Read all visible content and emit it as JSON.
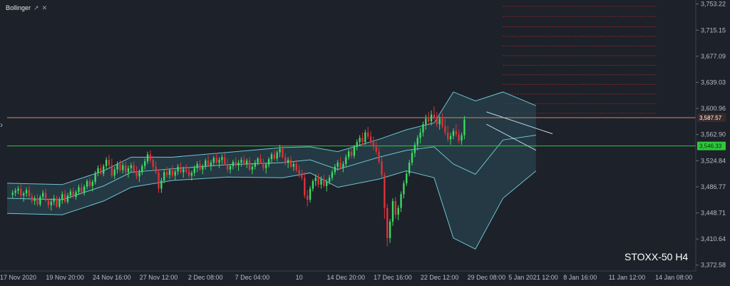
{
  "toolbar": {
    "indicator_name": "Bollinger",
    "settings_icon": "link-icon",
    "close_icon": "close-icon",
    "collapse_icon": "chevron-right-icon"
  },
  "instrument_label": "STOXX-50 H4",
  "colors": {
    "background": "#1d212a",
    "bull": "#3ddc63",
    "bear": "#e0323a",
    "band_line": "#6fc3cf",
    "band_fill": "#2a4f57",
    "resistance": "#d7826a",
    "support": "#2ec93a",
    "grid_red": "#b3262a"
  },
  "chart_data": {
    "type": "candlestick",
    "ylim": [
      3364,
      3757
    ],
    "y_ticks": [
      3753.22,
      3715.15,
      3677.09,
      3639.03,
      3600.96,
      3562.9,
      3524.84,
      3486.77,
      3448.71,
      3410.64,
      3372.58
    ],
    "y_tick_labels": [
      "3,753.22",
      "3,715.15",
      "3,677.09",
      "3,639.03",
      "3,600.96",
      "3,562.90",
      "3,524.84",
      "3,486.77",
      "3,448.71",
      "3,410.64",
      "3,372.58"
    ],
    "x_tick_labels": [
      "17 Nov 2020",
      "19 Nov 20:00",
      "24 Nov 16:00",
      "27 Nov 12:00",
      "2 Dec 08:00",
      "7 Dec 04:00",
      "10",
      "14 Dec 20:00",
      "17 Dec 16:00",
      "22 Dec 12:00",
      "29 Dec 08:00",
      "5 Jan 2021 12:00",
      "8 Jan 16:00",
      "11 Jan 12:00",
      "14 Jan 08:00"
    ],
    "x_tick_index": [
      4,
      21,
      38,
      55,
      72,
      89,
      106,
      123,
      140,
      157,
      174,
      191,
      208,
      225,
      242
    ],
    "index_max": 250,
    "candles": [
      [
        3475,
        3482,
        3470,
        3478
      ],
      [
        3478,
        3485,
        3473,
        3481
      ],
      [
        3481,
        3488,
        3476,
        3484
      ],
      [
        3484,
        3490,
        3470,
        3474
      ],
      [
        3474,
        3480,
        3465,
        3477
      ],
      [
        3477,
        3486,
        3472,
        3482
      ],
      [
        3482,
        3488,
        3470,
        3473
      ],
      [
        3473,
        3478,
        3462,
        3466
      ],
      [
        3466,
        3474,
        3460,
        3470
      ],
      [
        3470,
        3476,
        3458,
        3461
      ],
      [
        3461,
        3475,
        3458,
        3472
      ],
      [
        3472,
        3482,
        3468,
        3478
      ],
      [
        3478,
        3484,
        3465,
        3467
      ],
      [
        3467,
        3470,
        3455,
        3460
      ],
      [
        3460,
        3470,
        3452,
        3465
      ],
      [
        3465,
        3475,
        3460,
        3470
      ],
      [
        3470,
        3474,
        3456,
        3458
      ],
      [
        3458,
        3472,
        3455,
        3468
      ],
      [
        3468,
        3480,
        3462,
        3476
      ],
      [
        3476,
        3482,
        3463,
        3465
      ],
      [
        3465,
        3478,
        3462,
        3474
      ],
      [
        3474,
        3484,
        3470,
        3480
      ],
      [
        3480,
        3486,
        3470,
        3472
      ],
      [
        3472,
        3482,
        3468,
        3479
      ],
      [
        3479,
        3490,
        3475,
        3486
      ],
      [
        3486,
        3492,
        3476,
        3478
      ],
      [
        3478,
        3490,
        3474,
        3487
      ],
      [
        3487,
        3498,
        3483,
        3495
      ],
      [
        3495,
        3500,
        3485,
        3488
      ],
      [
        3488,
        3497,
        3480,
        3494
      ],
      [
        3494,
        3510,
        3490,
        3507
      ],
      [
        3507,
        3518,
        3502,
        3514
      ],
      [
        3514,
        3520,
        3504,
        3506
      ],
      [
        3506,
        3520,
        3502,
        3517
      ],
      [
        3517,
        3530,
        3512,
        3526
      ],
      [
        3526,
        3533,
        3515,
        3518
      ],
      [
        3518,
        3528,
        3500,
        3503
      ],
      [
        3503,
        3516,
        3498,
        3512
      ],
      [
        3512,
        3524,
        3506,
        3520
      ],
      [
        3520,
        3526,
        3508,
        3511
      ],
      [
        3511,
        3522,
        3506,
        3518
      ],
      [
        3518,
        3524,
        3505,
        3508
      ],
      [
        3508,
        3518,
        3500,
        3514
      ],
      [
        3514,
        3522,
        3508,
        3518
      ],
      [
        3518,
        3524,
        3506,
        3509
      ],
      [
        3509,
        3517,
        3498,
        3502
      ],
      [
        3502,
        3512,
        3494,
        3508
      ],
      [
        3508,
        3520,
        3504,
        3517
      ],
      [
        3517,
        3528,
        3512,
        3524
      ],
      [
        3524,
        3538,
        3520,
        3534
      ],
      [
        3534,
        3540,
        3522,
        3526
      ],
      [
        3526,
        3532,
        3512,
        3516
      ],
      [
        3516,
        3524,
        3505,
        3508
      ],
      [
        3508,
        3512,
        3478,
        3484
      ],
      [
        3484,
        3500,
        3478,
        3496
      ],
      [
        3496,
        3512,
        3492,
        3508
      ],
      [
        3508,
        3516,
        3500,
        3504
      ],
      [
        3504,
        3514,
        3498,
        3511
      ],
      [
        3511,
        3518,
        3500,
        3503
      ],
      [
        3503,
        3512,
        3496,
        3509
      ],
      [
        3509,
        3520,
        3504,
        3516
      ],
      [
        3516,
        3522,
        3506,
        3508
      ],
      [
        3508,
        3516,
        3500,
        3512
      ],
      [
        3512,
        3520,
        3506,
        3509
      ],
      [
        3509,
        3515,
        3500,
        3503
      ],
      [
        3503,
        3510,
        3496,
        3507
      ],
      [
        3507,
        3518,
        3502,
        3514
      ],
      [
        3514,
        3524,
        3508,
        3520
      ],
      [
        3520,
        3526,
        3510,
        3512
      ],
      [
        3512,
        3520,
        3505,
        3516
      ],
      [
        3516,
        3528,
        3512,
        3525
      ],
      [
        3525,
        3532,
        3516,
        3518
      ],
      [
        3518,
        3526,
        3510,
        3522
      ],
      [
        3522,
        3532,
        3518,
        3529
      ],
      [
        3529,
        3536,
        3520,
        3522
      ],
      [
        3522,
        3530,
        3514,
        3526
      ],
      [
        3526,
        3534,
        3520,
        3530
      ],
      [
        3530,
        3536,
        3518,
        3520
      ],
      [
        3520,
        3528,
        3508,
        3512
      ],
      [
        3512,
        3520,
        3506,
        3517
      ],
      [
        3517,
        3526,
        3512,
        3523
      ],
      [
        3523,
        3530,
        3515,
        3518
      ],
      [
        3518,
        3526,
        3510,
        3522
      ],
      [
        3522,
        3530,
        3516,
        3526
      ],
      [
        3526,
        3532,
        3518,
        3520
      ],
      [
        3520,
        3528,
        3514,
        3525
      ],
      [
        3525,
        3530,
        3510,
        3512
      ],
      [
        3512,
        3520,
        3505,
        3516
      ],
      [
        3516,
        3526,
        3512,
        3522
      ],
      [
        3522,
        3530,
        3518,
        3528
      ],
      [
        3528,
        3534,
        3520,
        3522
      ],
      [
        3522,
        3528,
        3510,
        3514
      ],
      [
        3514,
        3522,
        3506,
        3519
      ],
      [
        3519,
        3530,
        3515,
        3527
      ],
      [
        3527,
        3537,
        3522,
        3534
      ],
      [
        3534,
        3540,
        3525,
        3528
      ],
      [
        3528,
        3540,
        3524,
        3537
      ],
      [
        3537,
        3548,
        3530,
        3542
      ],
      [
        3542,
        3546,
        3528,
        3530
      ],
      [
        3530,
        3536,
        3518,
        3522
      ],
      [
        3522,
        3530,
        3514,
        3526
      ],
      [
        3526,
        3532,
        3514,
        3516
      ],
      [
        3516,
        3524,
        3510,
        3520
      ],
      [
        3520,
        3526,
        3508,
        3511
      ],
      [
        3511,
        3518,
        3500,
        3506
      ],
      [
        3506,
        3512,
        3496,
        3500
      ],
      [
        3500,
        3508,
        3470,
        3474
      ],
      [
        3474,
        3482,
        3458,
        3468
      ],
      [
        3468,
        3488,
        3464,
        3484
      ],
      [
        3484,
        3498,
        3480,
        3495
      ],
      [
        3495,
        3505,
        3488,
        3500
      ],
      [
        3500,
        3506,
        3486,
        3490
      ],
      [
        3490,
        3502,
        3484,
        3498
      ],
      [
        3498,
        3504,
        3486,
        3488
      ],
      [
        3488,
        3498,
        3480,
        3494
      ],
      [
        3494,
        3504,
        3490,
        3500
      ],
      [
        3500,
        3512,
        3496,
        3508
      ],
      [
        3508,
        3520,
        3504,
        3516
      ],
      [
        3516,
        3526,
        3510,
        3522
      ],
      [
        3522,
        3530,
        3512,
        3514
      ],
      [
        3514,
        3524,
        3508,
        3520
      ],
      [
        3520,
        3534,
        3516,
        3530
      ],
      [
        3530,
        3542,
        3526,
        3538
      ],
      [
        3538,
        3546,
        3528,
        3532
      ],
      [
        3532,
        3548,
        3528,
        3545
      ],
      [
        3545,
        3556,
        3540,
        3552
      ],
      [
        3552,
        3562,
        3546,
        3558
      ],
      [
        3558,
        3566,
        3548,
        3552
      ],
      [
        3552,
        3570,
        3548,
        3566
      ],
      [
        3566,
        3574,
        3556,
        3560
      ],
      [
        3560,
        3568,
        3548,
        3552
      ],
      [
        3552,
        3560,
        3540,
        3545
      ],
      [
        3545,
        3552,
        3534,
        3538
      ],
      [
        3538,
        3544,
        3520,
        3524
      ],
      [
        3524,
        3530,
        3500,
        3504
      ],
      [
        3504,
        3508,
        3440,
        3456
      ],
      [
        3456,
        3462,
        3400,
        3412
      ],
      [
        3412,
        3440,
        3405,
        3436
      ],
      [
        3436,
        3470,
        3430,
        3466
      ],
      [
        3466,
        3472,
        3440,
        3446
      ],
      [
        3446,
        3460,
        3438,
        3456
      ],
      [
        3456,
        3480,
        3450,
        3476
      ],
      [
        3476,
        3496,
        3470,
        3492
      ],
      [
        3492,
        3510,
        3488,
        3506
      ],
      [
        3506,
        3526,
        3502,
        3522
      ],
      [
        3522,
        3540,
        3518,
        3536
      ],
      [
        3536,
        3552,
        3530,
        3548
      ],
      [
        3548,
        3562,
        3540,
        3558
      ],
      [
        3558,
        3572,
        3550,
        3566
      ],
      [
        3566,
        3582,
        3560,
        3578
      ],
      [
        3578,
        3592,
        3570,
        3586
      ],
      [
        3586,
        3596,
        3576,
        3582
      ],
      [
        3582,
        3598,
        3576,
        3592
      ],
      [
        3592,
        3604,
        3584,
        3588
      ],
      [
        3588,
        3596,
        3574,
        3578
      ],
      [
        3578,
        3590,
        3570,
        3586
      ],
      [
        3586,
        3594,
        3572,
        3575
      ],
      [
        3575,
        3586,
        3562,
        3566
      ],
      [
        3566,
        3576,
        3552,
        3556
      ],
      [
        3556,
        3566,
        3548,
        3561
      ],
      [
        3561,
        3572,
        3556,
        3568
      ],
      [
        3568,
        3578,
        3560,
        3563
      ],
      [
        3563,
        3570,
        3550,
        3554
      ],
      [
        3554,
        3566,
        3548,
        3562
      ],
      [
        3562,
        3590,
        3556,
        3585
      ]
    ],
    "candle_index_start": 2,
    "candle_index_step": 1.0,
    "bollinger": {
      "upper": [
        [
          0,
          3492
        ],
        [
          20,
          3490
        ],
        [
          35,
          3510
        ],
        [
          45,
          3530
        ],
        [
          60,
          3530
        ],
        [
          80,
          3537
        ],
        [
          100,
          3544
        ],
        [
          110,
          3545
        ],
        [
          120,
          3538
        ],
        [
          135,
          3556
        ],
        [
          145,
          3570
        ],
        [
          155,
          3580
        ],
        [
          162,
          3625
        ],
        [
          170,
          3612
        ],
        [
          180,
          3625
        ],
        [
          192,
          3605
        ]
      ],
      "middle": [
        [
          0,
          3470
        ],
        [
          20,
          3468
        ],
        [
          35,
          3488
        ],
        [
          45,
          3508
        ],
        [
          60,
          3513
        ],
        [
          80,
          3519
        ],
        [
          100,
          3522
        ],
        [
          110,
          3526
        ],
        [
          120,
          3512
        ],
        [
          135,
          3530
        ],
        [
          145,
          3540
        ],
        [
          155,
          3545
        ],
        [
          162,
          3520
        ],
        [
          170,
          3505
        ],
        [
          180,
          3555
        ],
        [
          192,
          3562
        ]
      ],
      "lower": [
        [
          0,
          3448
        ],
        [
          20,
          3446
        ],
        [
          35,
          3466
        ],
        [
          45,
          3486
        ],
        [
          60,
          3496
        ],
        [
          80,
          3501
        ],
        [
          100,
          3500
        ],
        [
          110,
          3507
        ],
        [
          120,
          3486
        ],
        [
          135,
          3498
        ],
        [
          145,
          3510
        ],
        [
          155,
          3500
        ],
        [
          162,
          3412
        ],
        [
          170,
          3396
        ],
        [
          180,
          3470
        ],
        [
          192,
          3510
        ]
      ]
    },
    "resistance": 3587.57,
    "support": 3546.33,
    "resistance_label": "3,587.57",
    "support_label": "3,546.33",
    "trend_channel": [
      {
        "from": [
          174,
          3596
        ],
        "to": [
          198,
          3564
        ]
      },
      {
        "from": [
          174,
          3578
        ],
        "to": [
          192,
          3540
        ]
      }
    ],
    "red_grid": {
      "x_from": 180,
      "x_to": 236,
      "levels": [
        3750,
        3735,
        3720,
        3706,
        3692,
        3678,
        3664,
        3650,
        3636,
        3622,
        3608,
        3594
      ]
    }
  }
}
